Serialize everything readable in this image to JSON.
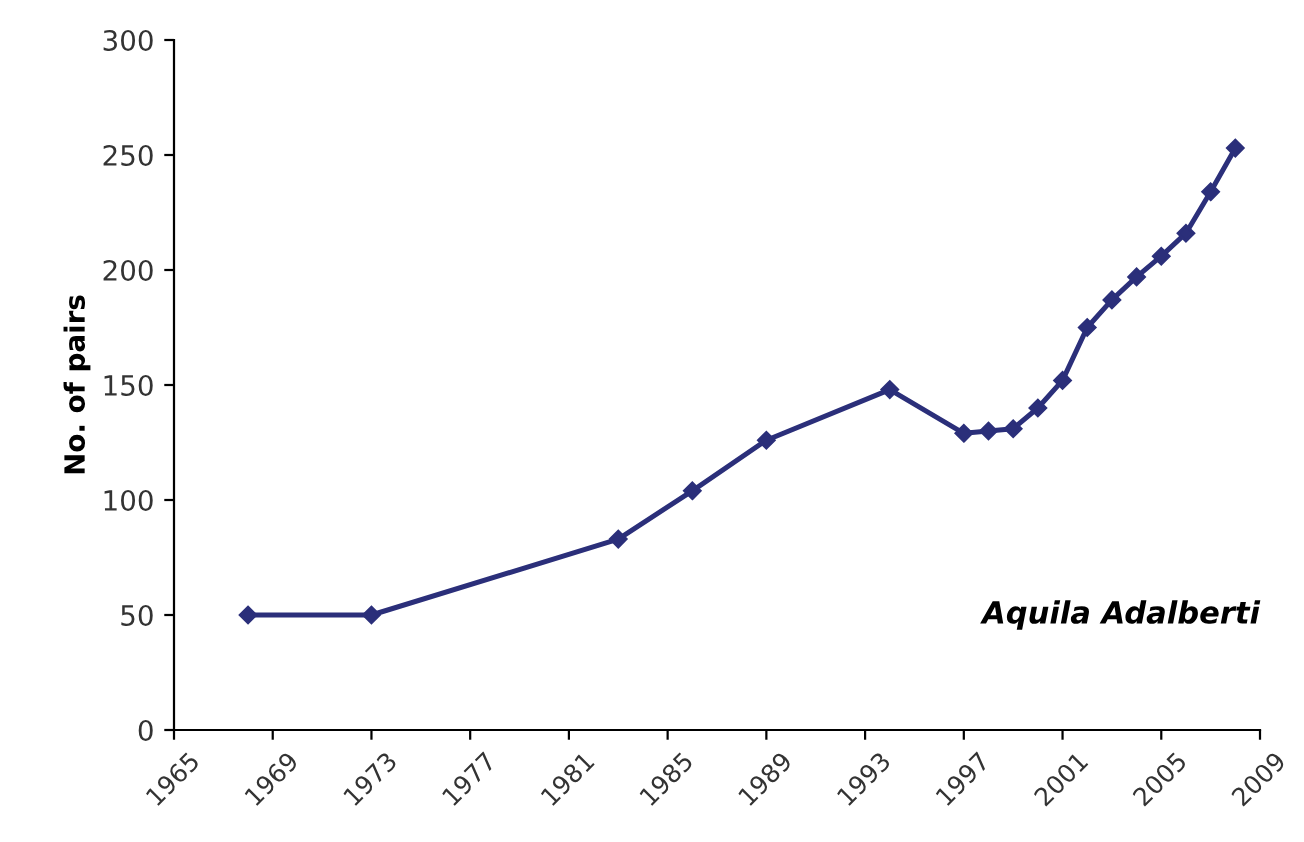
{
  "chart_data": {
    "type": "line",
    "ylabel": "No. of pairs",
    "x": [
      1968,
      1973,
      1983,
      1986,
      1989,
      1994,
      1997,
      1998,
      1999,
      2000,
      2001,
      2002,
      2003,
      2004,
      2005,
      2006,
      2007,
      2008
    ],
    "series": [
      {
        "color": "#2b2f7a",
        "values": [
          50,
          50,
          83,
          104,
          126,
          148,
          129,
          130,
          131,
          140,
          152,
          175,
          187,
          197,
          206,
          216,
          234,
          253
        ]
      }
    ],
    "xlim": [
      1965,
      2009
    ],
    "xticks": [
      1965,
      1969,
      1973,
      1977,
      1981,
      1985,
      1989,
      1993,
      1997,
      2001,
      2005,
      2009
    ],
    "ylim": [
      0,
      300
    ],
    "yticks": [
      0,
      50,
      100,
      150,
      200,
      250,
      300
    ],
    "marker": "diamond",
    "line_style": "solid",
    "grid": false,
    "legend": false,
    "annotations": [
      "Aquila Adalberti"
    ]
  }
}
